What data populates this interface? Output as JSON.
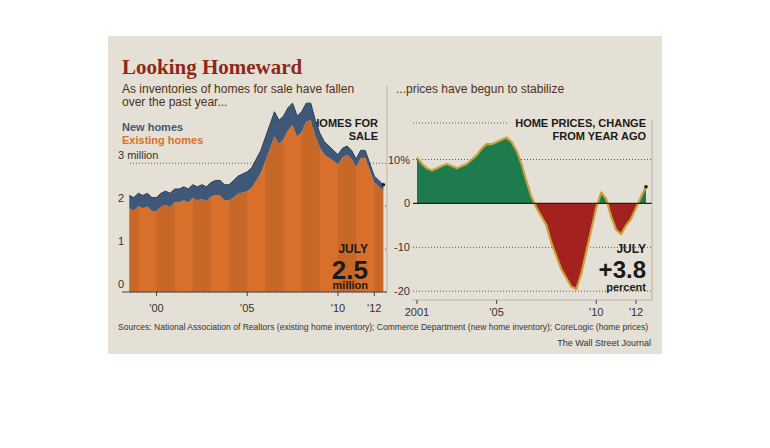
{
  "title": "Looking Homeward",
  "source": "Sources: National Association of Realtors (existing home inventory); Commerce Department (new home inventory); CoreLogic (home prices)",
  "credit": "The Wall Street Journal",
  "chart_data": [
    {
      "type": "area",
      "subtitle": [
        "As inventories of homes for sale have fallen",
        "over the past year..."
      ],
      "title": [
        "HOMES FOR",
        "SALE"
      ],
      "x": [
        1998.5,
        1998.75,
        1999,
        1999.25,
        1999.5,
        1999.75,
        2000,
        2000.25,
        2000.5,
        2000.75,
        2001,
        2001.25,
        2001.5,
        2001.75,
        2002,
        2002.25,
        2002.5,
        2002.75,
        2003,
        2003.25,
        2003.5,
        2003.75,
        2004,
        2004.25,
        2004.5,
        2004.75,
        2005,
        2005.25,
        2005.5,
        2005.75,
        2006,
        2006.25,
        2006.5,
        2006.75,
        2007,
        2007.25,
        2007.5,
        2007.75,
        2008,
        2008.25,
        2008.5,
        2008.75,
        2009,
        2009.25,
        2009.5,
        2009.75,
        2010,
        2010.25,
        2010.5,
        2010.75,
        2011,
        2011.25,
        2011.5,
        2011.75,
        2012,
        2012.25,
        2012.5
      ],
      "series": [
        {
          "name": "Existing homes",
          "color": "#d8702c",
          "values": [
            1.95,
            1.9,
            2.0,
            1.95,
            1.99,
            1.89,
            1.89,
            1.99,
            2.03,
            1.98,
            2.09,
            2.09,
            2.14,
            2.09,
            2.19,
            2.13,
            2.17,
            2.12,
            2.22,
            2.26,
            2.25,
            2.14,
            2.13,
            2.21,
            2.29,
            2.32,
            2.35,
            2.43,
            2.6,
            2.78,
            3.05,
            3.34,
            3.63,
            3.45,
            3.56,
            3.77,
            3.89,
            3.61,
            3.74,
            3.97,
            4.0,
            3.64,
            3.37,
            3.2,
            3.13,
            3.06,
            2.97,
            3.14,
            3.19,
            3.1,
            2.91,
            3.12,
            3.13,
            2.84,
            2.55,
            2.46,
            2.36
          ]
        },
        {
          "name": "New homes",
          "color": "#3f5877",
          "values": [
            0.3,
            0.3,
            0.3,
            0.3,
            0.31,
            0.31,
            0.31,
            0.31,
            0.32,
            0.32,
            0.31,
            0.31,
            0.31,
            0.31,
            0.31,
            0.32,
            0.33,
            0.33,
            0.33,
            0.34,
            0.35,
            0.36,
            0.37,
            0.39,
            0.41,
            0.43,
            0.45,
            0.47,
            0.5,
            0.52,
            0.55,
            0.56,
            0.57,
            0.55,
            0.54,
            0.53,
            0.51,
            0.49,
            0.46,
            0.43,
            0.4,
            0.36,
            0.33,
            0.3,
            0.27,
            0.24,
            0.23,
            0.21,
            0.21,
            0.2,
            0.19,
            0.18,
            0.17,
            0.16,
            0.15,
            0.14,
            0.14
          ]
        }
      ],
      "stacked": true,
      "xlim": [
        1998.1,
        2012.7
      ],
      "xticks": [
        {
          "value": 2000,
          "label": "'00"
        },
        {
          "value": 2005,
          "label": "'05"
        },
        {
          "value": 2010,
          "label": "'10"
        },
        {
          "value": 2012,
          "label": "'12"
        }
      ],
      "ylim": [
        0,
        4.8
      ],
      "yticks": [
        0,
        1,
        2,
        {
          "value": 3,
          "label": "3 million"
        }
      ],
      "grid": true,
      "annotation": {
        "label": "JULY",
        "value": 2.5,
        "unit": "million"
      }
    },
    {
      "type": "area",
      "subtitle": [
        "...prices have begun to stabilize"
      ],
      "title": [
        "HOME PRICES, CHANGE",
        "FROM YEAR AGO"
      ],
      "x": [
        2001,
        2001.25,
        2001.5,
        2001.75,
        2002,
        2002.25,
        2002.5,
        2002.75,
        2003,
        2003.25,
        2003.5,
        2003.75,
        2004,
        2004.25,
        2004.5,
        2004.75,
        2005,
        2005.25,
        2005.5,
        2005.75,
        2006,
        2006.25,
        2006.5,
        2006.75,
        2007,
        2007.25,
        2007.5,
        2007.75,
        2008,
        2008.25,
        2008.5,
        2008.75,
        2009,
        2009.25,
        2009.5,
        2009.75,
        2010,
        2010.25,
        2010.5,
        2010.75,
        2011,
        2011.25,
        2011.5,
        2011.75,
        2012,
        2012.25,
        2012.5
      ],
      "series": [
        {
          "colors": [
            "#1e7b4d",
            "#a3221e"
          ],
          "values": [
            10.5,
            9,
            8,
            7.5,
            8,
            8.5,
            9,
            8.5,
            8,
            8.5,
            9,
            10,
            11,
            12.5,
            13.5,
            13.5,
            14,
            14.5,
            15,
            14,
            12,
            9,
            5,
            1.5,
            -1,
            -3,
            -5,
            -9,
            -12,
            -15,
            -17,
            -19,
            -19.5,
            -16,
            -11,
            -6,
            -1,
            2.5,
            1,
            -3,
            -6,
            -7,
            -5,
            -3.5,
            -1,
            1.5,
            3.8
          ]
        }
      ],
      "xlim": [
        2000.8,
        2012.8
      ],
      "xticks": [
        2001,
        {
          "value": 2005,
          "label": "'05"
        },
        {
          "value": 2010,
          "label": "'10"
        },
        {
          "value": 2012,
          "label": "'12"
        }
      ],
      "ylim": [
        -22,
        19
      ],
      "yticks": [
        -20,
        -10,
        0,
        {
          "value": 10,
          "label": "10%"
        }
      ],
      "grid": true,
      "annotation": {
        "label": "JULY",
        "value": {
          "value": 3.8,
          "label": "+3.8"
        },
        "unit": "percent"
      }
    }
  ]
}
